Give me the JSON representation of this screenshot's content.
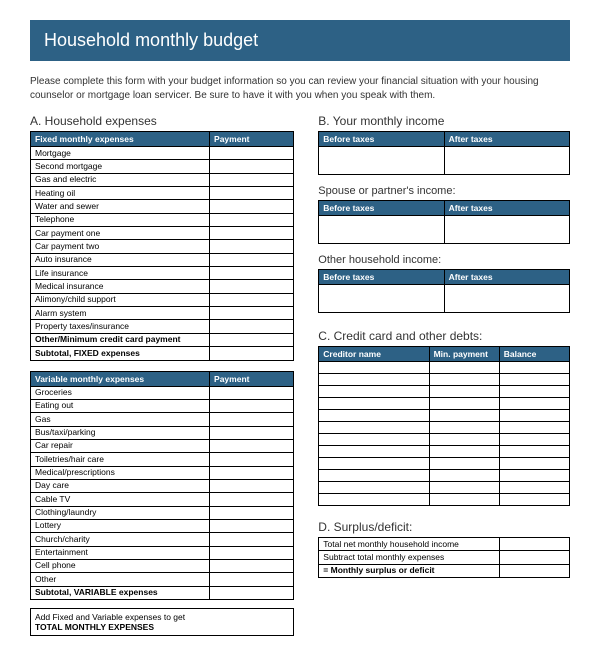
{
  "title": "Household monthly budget",
  "intro": "Please complete this form with your budget information so you can review your financial situation with your housing counselor or mortgage loan servicer. Be sure to have it with you when you speak with them.",
  "sectionA": {
    "heading": "A. Household expenses",
    "fixedHeader1": "Fixed monthly expenses",
    "fixedHeader2": "Payment",
    "fixedRows": [
      "Mortgage",
      "Second mortgage",
      "Gas and electric",
      "Heating oil",
      "Water and sewer",
      "Telephone",
      "Car payment one",
      "Car payment two",
      "Auto insurance",
      "Life insurance",
      "Medical insurance",
      "Alimony/child support",
      "Alarm system",
      "Property taxes/insurance"
    ],
    "fixedOther": "Other/Minimum credit card payment",
    "fixedSubtotal": "Subtotal, FIXED expenses",
    "varHeader1": "Variable monthly expenses",
    "varHeader2": "Payment",
    "varRows": [
      "Groceries",
      "Eating out",
      "Gas",
      "Bus/taxi/parking",
      "Car repair",
      "Toiletries/hair care",
      "Medical/prescriptions",
      "Day care",
      "Cable TV",
      "Clothing/laundry",
      "Lottery",
      "Church/charity",
      "Entertainment",
      "Cell phone",
      "Other"
    ],
    "varSubtotal": "Subtotal, VARIABLE expenses",
    "totalBox1": "Add Fixed and Variable expenses to get",
    "totalBox2": "TOTAL MONTHLY EXPENSES"
  },
  "sectionB": {
    "heading": "B.  Your monthly income",
    "before": "Before taxes",
    "after": "After taxes",
    "spouse": "Spouse or partner's income:",
    "other": "Other household income:"
  },
  "sectionC": {
    "heading": "C.  Credit card and other debts:",
    "h1": "Creditor name",
    "h2": "Min. payment",
    "h3": "Balance",
    "rowCount": 12
  },
  "sectionD": {
    "heading": "D.  Surplus/deficit:",
    "r1": "Total net monthly household income",
    "r2": "Subtract total monthly expenses",
    "r3": "= Monthly surplus or deficit"
  }
}
